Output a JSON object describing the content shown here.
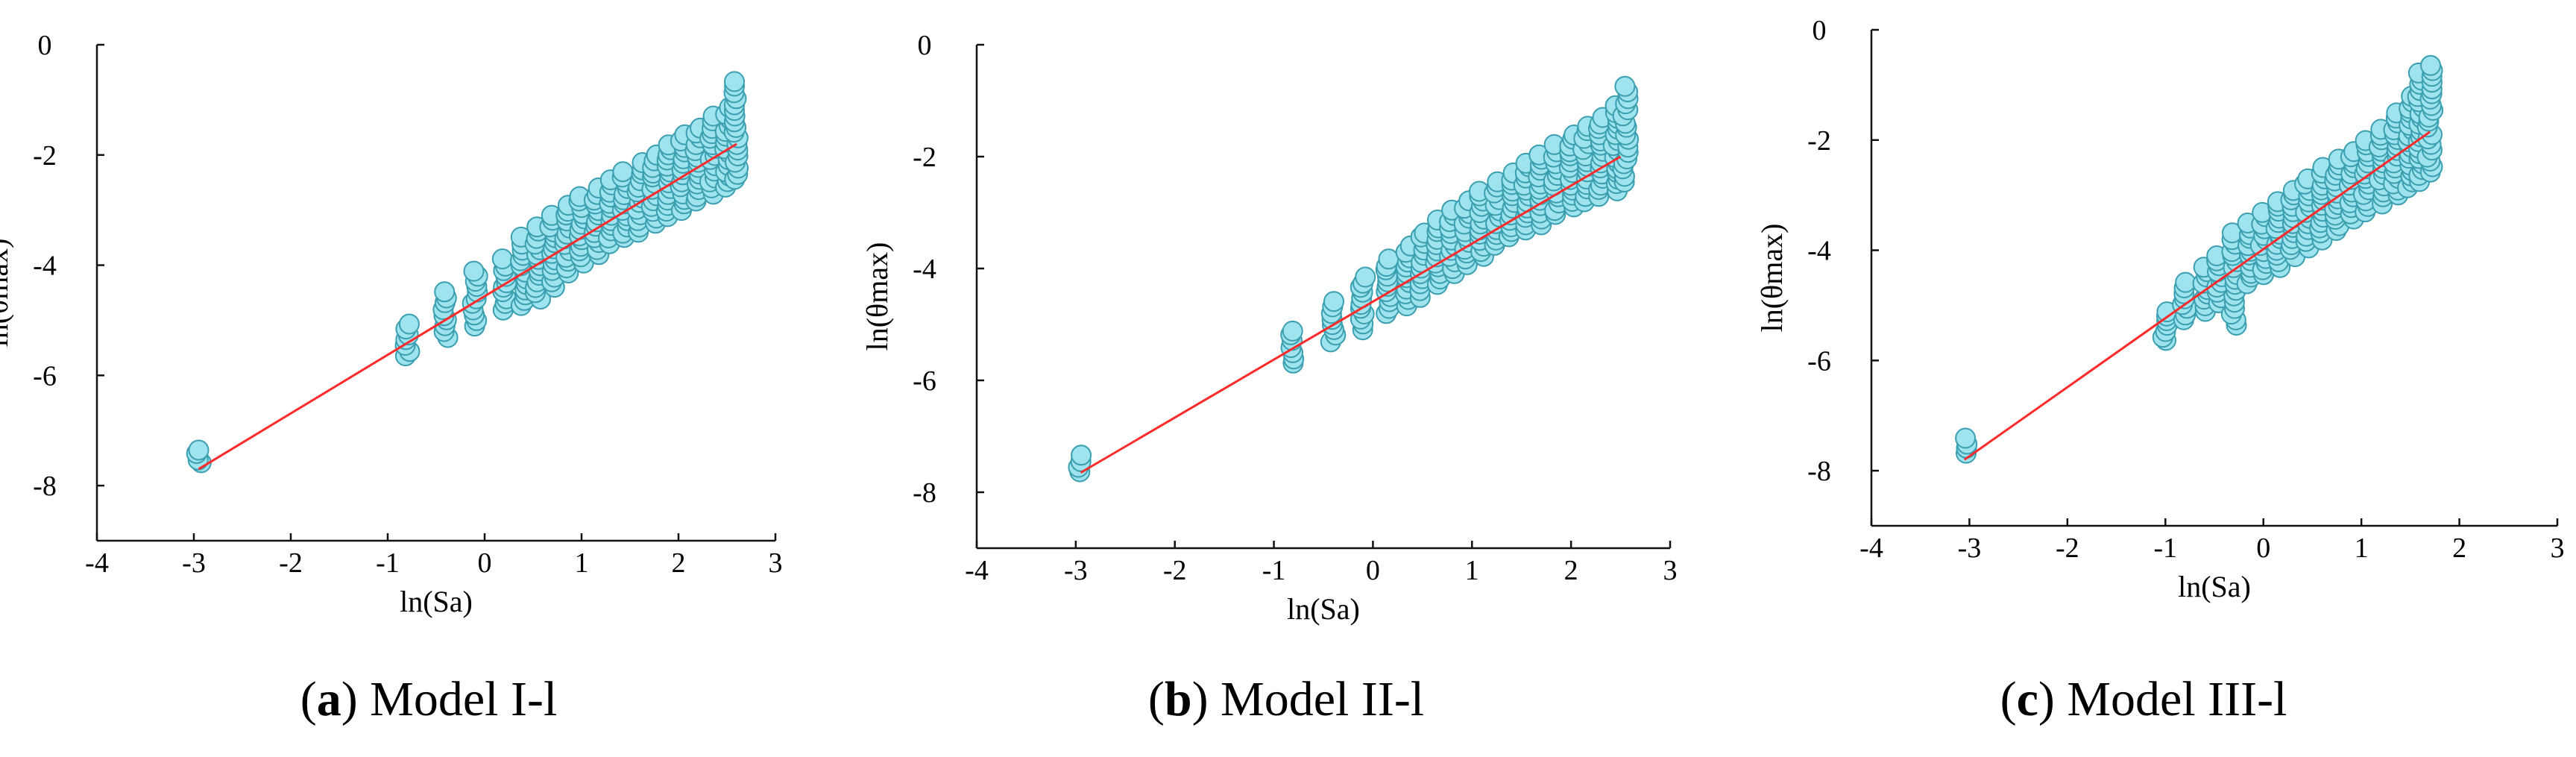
{
  "colors": {
    "marker_fill": "#9fe3ee",
    "marker_stroke": "#3a9fb0",
    "fit_line": "#ff2a2a"
  },
  "chart_data": [
    {
      "type": "scatter",
      "panel_letter": "a",
      "caption_text": " Model I-l",
      "xlabel": "ln(Sa)",
      "ylabel": "ln(θmax)",
      "xlim": [
        -4,
        3
      ],
      "ylim": [
        -9,
        0
      ],
      "xticks": [
        -4,
        -3,
        -2,
        -1,
        0,
        1,
        2,
        3
      ],
      "yticks": [
        0,
        -2,
        -4,
        -6,
        -8
      ],
      "fit": {
        "x0": -2.95,
        "y0": -7.7,
        "x1": 2.6,
        "y1": -1.8
      },
      "cluster": {
        "columns_x": [
          -2.95,
          -0.8,
          -0.4,
          -0.1,
          0.2,
          0.4,
          0.55,
          0.7,
          0.85,
          1.0,
          1.15,
          1.3,
          1.45,
          1.6,
          1.75,
          1.9,
          2.05,
          2.2,
          2.35,
          2.5,
          2.6
        ],
        "upper_y": [
          -7.35,
          -5.05,
          -4.5,
          -4.1,
          -3.9,
          -3.5,
          -3.3,
          -3.1,
          -2.9,
          -2.75,
          -2.6,
          -2.45,
          -2.3,
          -2.15,
          -2.0,
          -1.8,
          -1.65,
          -1.5,
          -1.3,
          -1.15,
          -0.65
        ],
        "lower_y": [
          -7.6,
          -5.65,
          -5.3,
          -5.1,
          -4.8,
          -4.75,
          -4.6,
          -4.4,
          -4.15,
          -3.95,
          -3.8,
          -3.6,
          -3.5,
          -3.4,
          -3.25,
          -3.1,
          -3.0,
          -2.85,
          -2.7,
          -2.6,
          -2.45
        ]
      }
    },
    {
      "type": "scatter",
      "panel_letter": "b",
      "caption_text": " Model II-l",
      "xlabel": "ln(Sa)",
      "ylabel": "ln(θmax)",
      "xlim": [
        -4,
        3
      ],
      "ylim": [
        -9,
        0
      ],
      "xticks": [
        -4,
        -3,
        -2,
        -1,
        0,
        1,
        2,
        3
      ],
      "yticks": [
        0,
        -2,
        -4,
        -6,
        -8
      ],
      "fit": {
        "x0": -2.95,
        "y0": -7.65,
        "x1": 2.5,
        "y1": -2.0
      },
      "cluster": {
        "columns_x": [
          -2.95,
          -0.8,
          -0.4,
          -0.1,
          0.15,
          0.35,
          0.5,
          0.65,
          0.8,
          0.95,
          1.1,
          1.25,
          1.4,
          1.55,
          1.7,
          1.85,
          2.0,
          2.15,
          2.3,
          2.45,
          2.55
        ],
        "upper_y": [
          -7.35,
          -5.1,
          -4.6,
          -4.15,
          -3.85,
          -3.6,
          -3.35,
          -3.15,
          -2.95,
          -2.8,
          -2.6,
          -2.45,
          -2.3,
          -2.1,
          -1.95,
          -1.8,
          -1.6,
          -1.45,
          -1.3,
          -1.1,
          -0.75
        ],
        "lower_y": [
          -7.65,
          -5.7,
          -5.3,
          -5.1,
          -4.8,
          -4.65,
          -4.5,
          -4.3,
          -4.1,
          -3.95,
          -3.8,
          -3.6,
          -3.45,
          -3.3,
          -3.2,
          -3.05,
          -2.9,
          -2.8,
          -2.7,
          -2.6,
          -2.45
        ]
      }
    },
    {
      "type": "scatter",
      "panel_letter": "c",
      "caption_text": " Model III-l",
      "xlabel": "ln(Sa)",
      "ylabel": "ln(θmax)",
      "xlim": [
        -4,
        3
      ],
      "ylim": [
        -9,
        0
      ],
      "xticks": [
        -4,
        -3,
        -2,
        -1,
        0,
        1,
        2,
        3
      ],
      "yticks": [
        0,
        -2,
        -4,
        -6,
        -8
      ],
      "fit": {
        "x0": -3.05,
        "y0": -7.8,
        "x1": 1.7,
        "y1": -1.85
      },
      "cluster": {
        "columns_x": [
          -3.05,
          -1.0,
          -0.8,
          -0.6,
          -0.45,
          -0.3,
          -0.15,
          0.0,
          0.15,
          0.3,
          0.45,
          0.6,
          0.75,
          0.9,
          1.05,
          1.2,
          1.35,
          1.5,
          1.6,
          1.7
        ],
        "upper_y": [
          -7.4,
          -5.1,
          -4.6,
          -4.3,
          -4.1,
          -3.7,
          -3.5,
          -3.3,
          -3.1,
          -2.9,
          -2.7,
          -2.5,
          -2.35,
          -2.2,
          -2.0,
          -1.8,
          -1.5,
          -1.2,
          -0.8,
          -0.65
        ],
        "lower_y": [
          -7.7,
          -5.65,
          -5.25,
          -5.1,
          -4.95,
          -5.35,
          -4.6,
          -4.45,
          -4.3,
          -4.1,
          -3.95,
          -3.8,
          -3.65,
          -3.45,
          -3.3,
          -3.15,
          -3.0,
          -2.85,
          -2.75,
          -2.6
        ]
      }
    }
  ]
}
